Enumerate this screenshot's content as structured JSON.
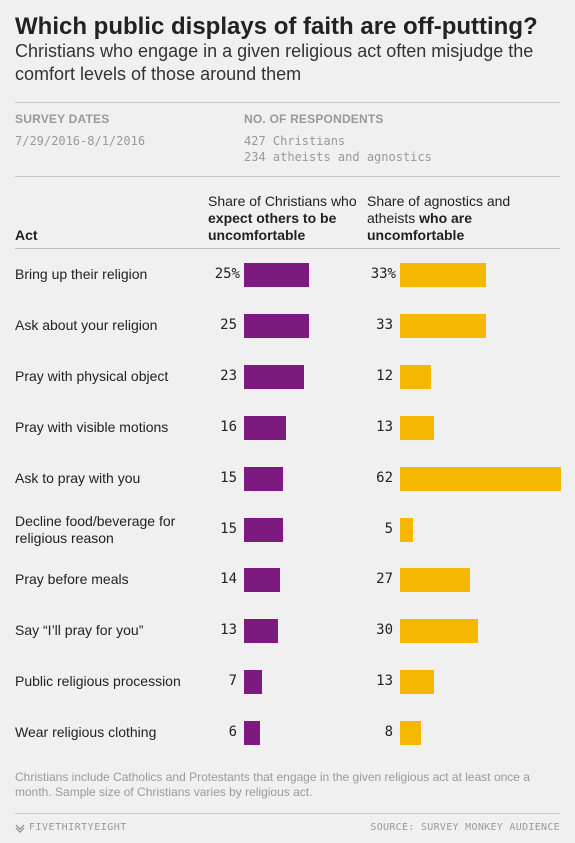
{
  "chart_data": {
    "type": "bar",
    "title": "Which public displays of faith are off-putting?",
    "subtitle": "Christians who engage in a given religious act often misjudge the comfort levels of those around them",
    "meta": {
      "dates_label": "SURVEY DATES",
      "dates_value": "7/29/2016-8/1/2016",
      "respondents_label": "NO. OF RESPONDENTS",
      "respondents_lines": [
        "427 Christians",
        "234 atheists and agnostics"
      ]
    },
    "act_header": "Act",
    "series": [
      {
        "name_plain": "Share of Christians who",
        "name_bold": "expect others to be uncomfortable",
        "color": "#7d1a7f",
        "values": [
          25,
          25,
          23,
          16,
          15,
          15,
          14,
          13,
          7,
          6
        ]
      },
      {
        "name_plain": "Share of agnostics and atheists",
        "name_bold": "who are uncomfortable",
        "color": "#f5b700",
        "values": [
          33,
          33,
          12,
          13,
          62,
          5,
          27,
          30,
          13,
          8
        ]
      }
    ],
    "categories": [
      "Bring up their religion",
      "Ask about your religion",
      "Pray with physical object",
      "Pray with visible motions",
      "Ask to pray with you",
      "Decline food/beverage for religious reason",
      "Pray before meals",
      "Say “I’ll pray for you”",
      "Public religious procession",
      "Wear religious clothing"
    ],
    "first_label_suffix": "%",
    "note": "Christians include Catholics and Protestants that engage in the given religious act at least once a month. Sample size of Christians varies by religious act.",
    "brand": "FIVETHIRTYEIGHT",
    "source": "SOURCE: SURVEY MONKEY AUDIENCE"
  }
}
